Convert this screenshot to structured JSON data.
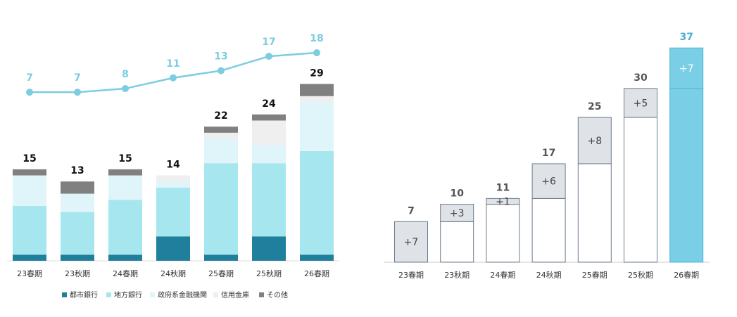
{
  "chart_data": [
    {
      "type": "bar",
      "stacked": true,
      "categories": [
        "23春期",
        "23秋期",
        "24春期",
        "24秋期",
        "25春期",
        "25秋期",
        "26春期"
      ],
      "series": [
        {
          "name": "都市銀行",
          "color": "#1f7f9c",
          "values": [
            1,
            1,
            1,
            4,
            1,
            4,
            1
          ]
        },
        {
          "name": "地方銀行",
          "color": "#a6e6ef",
          "values": [
            8,
            7,
            9,
            8,
            15,
            12,
            17
          ]
        },
        {
          "name": "政府系金融機関",
          "color": "#dff5f9",
          "values": [
            5,
            3,
            4,
            1,
            4,
            3,
            8
          ]
        },
        {
          "name": "信用金庫",
          "color": "#efefef",
          "values": [
            0,
            0,
            0,
            1,
            1,
            4,
            1
          ]
        },
        {
          "name": "その他",
          "color": "#808080",
          "values": [
            1,
            2,
            1,
            0,
            1,
            1,
            2
          ]
        }
      ],
      "totals": [
        15,
        13,
        15,
        14,
        22,
        24,
        29
      ],
      "ylim": [
        0,
        40
      ],
      "line": {
        "color": "#7ccde0",
        "values": [
          7,
          7,
          8,
          11,
          13,
          17,
          18
        ]
      },
      "y2lim": [
        -40,
        28
      ]
    },
    {
      "type": "waterfall",
      "categories": [
        "23春期",
        "23秋期",
        "24春期",
        "24秋期",
        "25春期",
        "25秋期",
        "26春期"
      ],
      "values": [
        7,
        3,
        1,
        6,
        8,
        5,
        7
      ],
      "value_labels": [
        "+7",
        "+3",
        "+1",
        "+6",
        "+8",
        "+5",
        "+7"
      ],
      "totals": [
        7,
        10,
        11,
        17,
        25,
        30,
        37
      ],
      "color": "#dfe3e7",
      "highlight_color": "#7acfe6",
      "ylim": [
        0,
        42
      ]
    }
  ]
}
